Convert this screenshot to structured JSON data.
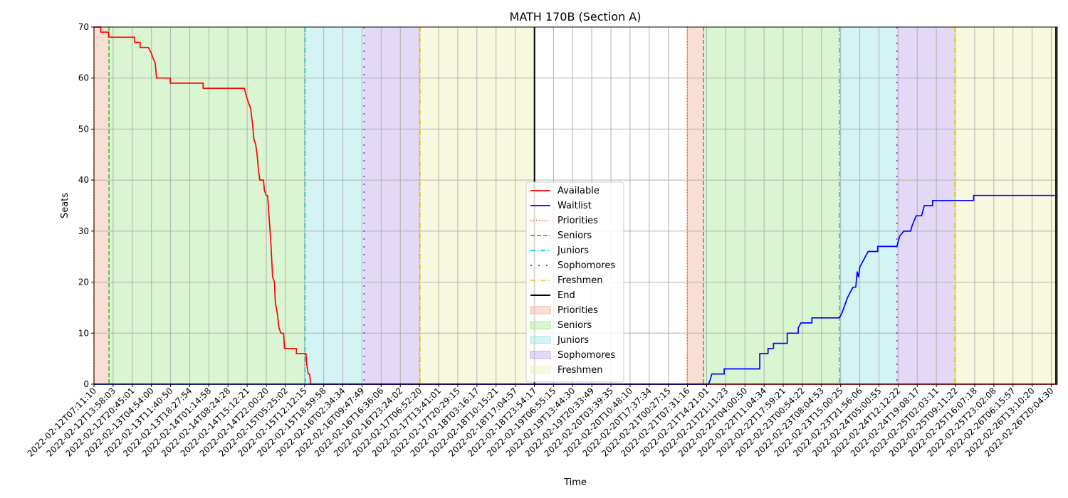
{
  "chart_data": {
    "type": "line",
    "title": "MATH 170B (Section A)",
    "xlabel": "Time",
    "ylabel": "Seats",
    "ylim": [
      0,
      70
    ],
    "yticks": [
      0,
      10,
      20,
      30,
      40,
      50,
      60,
      70
    ],
    "x_range": [
      "2022-02-12T07:11:10",
      "2022-02-26T22:30:00"
    ],
    "xtick_labels": [
      "2022-02-12T07:11:10",
      "2022-02-12T13:58:03",
      "2022-02-12T20:45:01",
      "2022-02-13T04:54:00",
      "2022-02-13T11:40:50",
      "2022-02-13T18:27:54",
      "2022-02-14T01:14:58",
      "2022-02-14T08:24:28",
      "2022-02-14T15:12:21",
      "2022-02-14T22:00:20",
      "2022-02-15T05:25:02",
      "2022-02-15T12:12:15",
      "2022-02-15T18:59:58",
      "2022-02-16T02:34:34",
      "2022-02-16T09:47:49",
      "2022-02-16T16:36:06",
      "2022-02-16T23:24:02",
      "2022-02-17T06:52:20",
      "2022-02-17T13:41:01",
      "2022-02-17T20:29:15",
      "2022-02-18T03:16:17",
      "2022-02-18T10:15:21",
      "2022-02-18T17:04:57",
      "2022-02-18T23:54:17",
      "2022-02-19T06:55:15",
      "2022-02-19T13:44:30",
      "2022-02-19T20:33:49",
      "2022-02-20T03:39:35",
      "2022-02-20T10:48:10",
      "2022-02-20T17:37:34",
      "2022-02-21T00:27:15",
      "2022-02-21T07:31:16",
      "2022-02-21T14:21:01",
      "2022-02-21T21:11:23",
      "2022-02-22T04:00:50",
      "2022-02-22T11:04:34",
      "2022-02-22T17:59:21",
      "2022-02-23T00:54:22",
      "2022-02-23T08:04:53",
      "2022-02-23T15:00:25",
      "2022-02-23T21:56:06",
      "2022-02-24T05:00:55",
      "2022-02-24T12:12:22",
      "2022-02-24T19:08:17",
      "2022-02-25T02:03:11",
      "2022-02-25T09:11:22",
      "2022-02-25T16:07:18",
      "2022-02-25T23:02:08",
      "2022-02-26T06:15:57",
      "2022-02-26T13:10:20",
      "2022-02-26T20:04:30"
    ],
    "grid": true,
    "legend_position": "lower center",
    "periods": [
      {
        "name": "Priorities",
        "start": "2022-02-12T07:11:10",
        "end": "2022-02-12T12:40:00",
        "color": "#f4b6a0",
        "line_color": "#ff6020",
        "line_style": "dotted"
      },
      {
        "name": "Seniors",
        "start": "2022-02-12T12:40:00",
        "end": "2022-02-15T12:10:00",
        "color": "#aee89a",
        "line_color": "#20c020",
        "line_style": "dashed"
      },
      {
        "name": "Juniors",
        "start": "2022-02-15T12:10:00",
        "end": "2022-02-16T09:40:00",
        "color": "#a0e4e4",
        "line_color": "#00c8c8",
        "line_style": "dashdot"
      },
      {
        "name": "Sophomores",
        "start": "2022-02-16T09:40:00",
        "end": "2022-02-17T06:10:00",
        "color": "#c2a8ec",
        "line_color": "#6020e0",
        "line_style": "loosedash"
      },
      {
        "name": "Freshmen",
        "start": "2022-02-17T06:10:00",
        "end": "2022-02-18T23:50:00",
        "color": "#f0f0b8",
        "line_color": "#e0d040",
        "line_style": "dashdot"
      },
      {
        "name": "Priorities",
        "start": "2022-02-21T07:31:00",
        "end": "2022-02-21T13:30:00",
        "color": "#f4b6a0",
        "line_color": "#ff6020",
        "line_style": "dotted"
      },
      {
        "name": "Seniors",
        "start": "2022-02-21T13:30:00",
        "end": "2022-02-23T15:00:00",
        "color": "#aee89a",
        "line_color": "#20c020",
        "line_style": "dashed"
      },
      {
        "name": "Juniors",
        "start": "2022-02-23T15:00:00",
        "end": "2022-02-24T12:00:00",
        "color": "#a0e4e4",
        "line_color": "#00c8c8",
        "line_style": "dashdot"
      },
      {
        "name": "Sophomores",
        "start": "2022-02-24T12:00:00",
        "end": "2022-02-25T09:00:00",
        "color": "#c2a8ec",
        "line_color": "#6020e0",
        "line_style": "loosedash"
      },
      {
        "name": "Freshmen",
        "start": "2022-02-25T09:00:00",
        "end": "2022-02-26T22:00:00",
        "color": "#f0f0b8",
        "line_color": "#e0d040",
        "line_style": "dashdot"
      }
    ],
    "end_lines": [
      "2022-02-18T23:50:00",
      "2022-02-26T22:00:00"
    ],
    "series": [
      {
        "name": "Available",
        "color": "#ff0000",
        "points": [
          [
            "2022-02-12T07:11:10",
            70
          ],
          [
            "2022-02-12T09:40:00",
            70
          ],
          [
            "2022-02-12T09:40:00",
            69
          ],
          [
            "2022-02-12T12:30:00",
            69
          ],
          [
            "2022-02-12T12:30:00",
            68
          ],
          [
            "2022-02-12T22:00:00",
            68
          ],
          [
            "2022-02-12T22:00:00",
            67
          ],
          [
            "2022-02-13T00:00:00",
            67
          ],
          [
            "2022-02-13T00:00:00",
            66
          ],
          [
            "2022-02-13T03:00:00",
            66
          ],
          [
            "2022-02-13T04:00:00",
            65
          ],
          [
            "2022-02-13T04:40:00",
            64
          ],
          [
            "2022-02-13T05:30:00",
            63
          ],
          [
            "2022-02-13T06:00:00",
            60
          ],
          [
            "2022-02-13T11:00:00",
            60
          ],
          [
            "2022-02-13T11:00:00",
            59
          ],
          [
            "2022-02-13T23:00:00",
            59
          ],
          [
            "2022-02-13T23:00:00",
            58
          ],
          [
            "2022-02-14T14:00:00",
            58
          ],
          [
            "2022-02-14T14:30:00",
            57
          ],
          [
            "2022-02-14T15:00:00",
            56
          ],
          [
            "2022-02-14T15:40:00",
            55
          ],
          [
            "2022-02-14T16:20:00",
            54
          ],
          [
            "2022-02-14T17:00:00",
            51
          ],
          [
            "2022-02-14T17:30:00",
            48
          ],
          [
            "2022-02-14T18:10:00",
            47
          ],
          [
            "2022-02-14T18:40:00",
            45
          ],
          [
            "2022-02-14T19:10:00",
            42
          ],
          [
            "2022-02-14T19:40:00",
            40
          ],
          [
            "2022-02-14T21:00:00",
            40
          ],
          [
            "2022-02-14T21:20:00",
            38
          ],
          [
            "2022-02-14T22:00:00",
            37
          ],
          [
            "2022-02-14T22:30:00",
            37
          ],
          [
            "2022-02-14T23:00:00",
            33
          ],
          [
            "2022-02-14T23:40:00",
            28
          ],
          [
            "2022-02-15T00:20:00",
            21
          ],
          [
            "2022-02-15T01:00:00",
            20
          ],
          [
            "2022-02-15T01:20:00",
            16
          ],
          [
            "2022-02-15T02:00:00",
            14
          ],
          [
            "2022-02-15T02:40:00",
            11
          ],
          [
            "2022-02-15T03:20:00",
            10
          ],
          [
            "2022-02-15T04:20:00",
            10
          ],
          [
            "2022-02-15T04:40:00",
            7
          ],
          [
            "2022-02-15T09:00:00",
            7
          ],
          [
            "2022-02-15T09:00:00",
            6
          ],
          [
            "2022-02-15T12:30:00",
            6
          ],
          [
            "2022-02-15T12:45:00",
            4
          ],
          [
            "2022-02-15T13:20:00",
            2
          ],
          [
            "2022-02-15T13:50:00",
            2
          ],
          [
            "2022-02-15T14:10:00",
            0
          ],
          [
            "2022-02-26T22:30:00",
            0
          ]
        ]
      },
      {
        "name": "Waitlist",
        "color": "#0000ff",
        "points": [
          [
            "2022-02-12T07:11:10",
            0
          ],
          [
            "2022-02-21T15:20:00",
            0
          ],
          [
            "2022-02-21T16:00:00",
            1
          ],
          [
            "2022-02-21T16:30:00",
            2
          ],
          [
            "2022-02-21T21:00:00",
            2
          ],
          [
            "2022-02-21T21:00:00",
            3
          ],
          [
            "2022-02-22T10:00:00",
            3
          ],
          [
            "2022-02-22T10:00:00",
            6
          ],
          [
            "2022-02-22T13:00:00",
            6
          ],
          [
            "2022-02-22T13:00:00",
            7
          ],
          [
            "2022-02-22T15:00:00",
            7
          ],
          [
            "2022-02-22T15:00:00",
            8
          ],
          [
            "2022-02-22T20:00:00",
            8
          ],
          [
            "2022-02-22T20:00:00",
            10
          ],
          [
            "2022-02-23T00:00:00",
            10
          ],
          [
            "2022-02-23T00:00:00",
            11
          ],
          [
            "2022-02-23T01:00:00",
            12
          ],
          [
            "2022-02-23T05:00:00",
            12
          ],
          [
            "2022-02-23T05:00:00",
            13
          ],
          [
            "2022-02-23T15:00:00",
            13
          ],
          [
            "2022-02-23T16:00:00",
            14
          ],
          [
            "2022-02-23T16:40:00",
            15
          ],
          [
            "2022-02-23T17:20:00",
            16
          ],
          [
            "2022-02-23T18:00:00",
            17
          ],
          [
            "2022-02-23T19:00:00",
            18
          ],
          [
            "2022-02-23T20:00:00",
            19
          ],
          [
            "2022-02-23T21:00:00",
            19
          ],
          [
            "2022-02-23T21:30:00",
            22
          ],
          [
            "2022-02-23T22:00:00",
            21
          ],
          [
            "2022-02-23T22:30:00",
            23
          ],
          [
            "2022-02-23T23:30:00",
            24
          ],
          [
            "2022-02-24T00:30:00",
            25
          ],
          [
            "2022-02-24T01:30:00",
            26
          ],
          [
            "2022-02-24T05:00:00",
            26
          ],
          [
            "2022-02-24T05:00:00",
            27
          ],
          [
            "2022-02-24T12:00:00",
            27
          ],
          [
            "2022-02-24T12:30:00",
            28
          ],
          [
            "2022-02-24T13:00:00",
            29
          ],
          [
            "2022-02-24T14:30:00",
            30
          ],
          [
            "2022-02-24T17:00:00",
            30
          ],
          [
            "2022-02-24T17:30:00",
            31
          ],
          [
            "2022-02-24T19:00:00",
            33
          ],
          [
            "2022-02-24T21:00:00",
            33
          ],
          [
            "2022-02-24T22:00:00",
            35
          ],
          [
            "2022-02-25T01:00:00",
            35
          ],
          [
            "2022-02-25T01:00:00",
            36
          ],
          [
            "2022-02-25T16:00:00",
            36
          ],
          [
            "2022-02-25T16:00:00",
            37
          ],
          [
            "2022-02-26T22:30:00",
            37
          ]
        ]
      }
    ],
    "legend": [
      {
        "label": "Available",
        "kind": "line",
        "color": "#ff0000",
        "style": "solid"
      },
      {
        "label": "Waitlist",
        "kind": "line",
        "color": "#0000ff",
        "style": "solid"
      },
      {
        "label": "Priorities",
        "kind": "line",
        "color": "#ff6020",
        "style": "dotted"
      },
      {
        "label": "Seniors",
        "kind": "line",
        "color": "#20c020",
        "style": "dashed"
      },
      {
        "label": "Juniors",
        "kind": "line",
        "color": "#00c8c8",
        "style": "dashdot"
      },
      {
        "label": "Sophomores",
        "kind": "line",
        "color": "#6020e0",
        "style": "loosedash"
      },
      {
        "label": "Freshmen",
        "kind": "line",
        "color": "#e0d040",
        "style": "dashdot"
      },
      {
        "label": "End",
        "kind": "line",
        "color": "#000000",
        "style": "solid"
      },
      {
        "label": "Priorities",
        "kind": "patch",
        "color": "#f4b6a0"
      },
      {
        "label": "Seniors",
        "kind": "patch",
        "color": "#aee89a"
      },
      {
        "label": "Juniors",
        "kind": "patch",
        "color": "#a0e4e4"
      },
      {
        "label": "Sophomores",
        "kind": "patch",
        "color": "#c2a8ec"
      },
      {
        "label": "Freshmen",
        "kind": "patch",
        "color": "#f0f0b8"
      }
    ]
  }
}
